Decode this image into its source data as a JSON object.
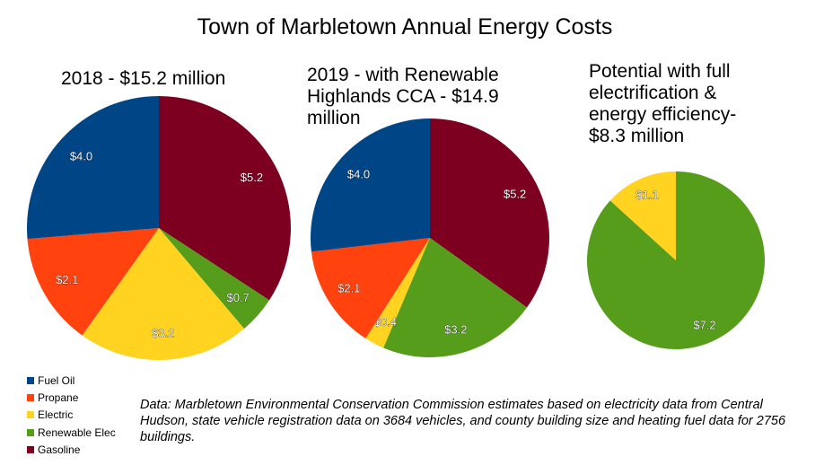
{
  "title": "Town of Marbletown Annual Energy Costs",
  "colors": {
    "Fuel Oil": "#004586",
    "Propane": "#ff420e",
    "Electric": "#ffd320",
    "Renewable Elec": "#579d1c",
    "Gasoline": "#7e0021"
  },
  "legend": [
    "Fuel Oil",
    "Propane",
    "Electric",
    "Renewable Elec",
    "Gasoline"
  ],
  "source_note": "Data: Marbletown Environmental Conservation Commission estimates based on electricity data from Central Hudson, state vehicle registration data on 3684 vehicles, and county building size and heating fuel data for 2756 buildings.",
  "chart_data": [
    {
      "type": "pie",
      "title": "2018 - $15.2 million",
      "slices": [
        {
          "name": "Gasoline",
          "value": 5.2,
          "label": "$5.2"
        },
        {
          "name": "Renewable Elec",
          "value": 0.7,
          "label": "$0.7"
        },
        {
          "name": "Electric",
          "value": 3.2,
          "label": "$3.2"
        },
        {
          "name": "Propane",
          "value": 2.1,
          "label": "$2.1"
        },
        {
          "name": "Fuel Oil",
          "value": 4.0,
          "label": "$4.0"
        }
      ]
    },
    {
      "type": "pie",
      "title": "2019 - with Renewable\nHighlands CCA - $14.9\nmillion",
      "slices": [
        {
          "name": "Gasoline",
          "value": 5.2,
          "label": "$5.2"
        },
        {
          "name": "Renewable Elec",
          "value": 3.2,
          "label": "$3.2"
        },
        {
          "name": "Electric",
          "value": 0.4,
          "label": "$0.4"
        },
        {
          "name": "Propane",
          "value": 2.1,
          "label": "$2.1"
        },
        {
          "name": "Fuel Oil",
          "value": 4.0,
          "label": "$4.0"
        }
      ]
    },
    {
      "type": "pie",
      "title": "Potential with full\nelectrification &\nenergy efficiency-\n$8.3 million",
      "slices": [
        {
          "name": "Renewable Elec",
          "value": 7.2,
          "label": "$7.2"
        },
        {
          "name": "Electric",
          "value": 1.1,
          "label": "$1.1"
        }
      ]
    }
  ]
}
